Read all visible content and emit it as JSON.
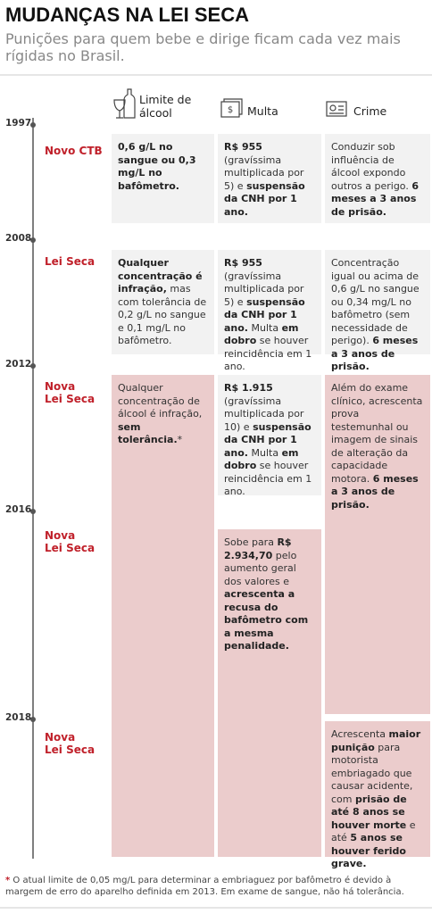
{
  "header": {
    "title": "MUDANÇAS NA LEI SECA",
    "subtitle": "Punições para quem bebe e dirige ficam cada vez mais rígidas no Brasil."
  },
  "columns": {
    "limit": "Limite de álcool",
    "fine": "Multa",
    "crime": "Crime"
  },
  "entries": [
    {
      "year": "1997",
      "label": "Novo CTB",
      "cells": {
        "limit": [
          {
            "text": "0,6 g/L no sangue ou 0,3 mg/L no bafômetro.",
            "bold": true
          }
        ],
        "fine": [
          {
            "text": "R$ 955",
            "bold": true
          },
          {
            "text": " (gravíssima multiplicada por 5) e ",
            "bold": false
          },
          {
            "text": "suspensão da CNH por 1 ano.",
            "bold": true
          }
        ],
        "crime": [
          {
            "text": "Conduzir sob influência de álcool expondo outros a perigo. ",
            "bold": false
          },
          {
            "text": "6 meses a 3 anos de prisão.",
            "bold": true
          }
        ]
      }
    },
    {
      "year": "2008",
      "label": "Lei Seca",
      "cells": {
        "limit": [
          {
            "text": "Qualquer concentração é infração,",
            "bold": true
          },
          {
            "text": " mas com tolerância de 0,2 g/L no sangue e 0,1 mg/L no bafômetro.",
            "bold": false
          }
        ],
        "fine": [
          {
            "text": "R$ 955",
            "bold": true
          },
          {
            "text": " (gravíssima multiplicada por 5) e ",
            "bold": false
          },
          {
            "text": "suspensão da CNH por 1 ano.",
            "bold": true
          },
          {
            "text": " Multa ",
            "bold": false
          },
          {
            "text": "em dobro",
            "bold": true
          },
          {
            "text": " se houver reincidência em 1 ano.",
            "bold": false
          }
        ],
        "crime": [
          {
            "text": "Concentração igual ou acima de 0,6 g/L no sangue ou 0,34 mg/L no bafômetro (sem necessidade de perigo). ",
            "bold": false
          },
          {
            "text": "6 meses a 3 anos de prisão.",
            "bold": true
          }
        ]
      }
    },
    {
      "year": "2012",
      "label": "Nova\nLei Seca",
      "cells": {
        "limit": [
          {
            "text": "Qualquer concentração de álcool é infração, ",
            "bold": false
          },
          {
            "text": "sem tolerância.",
            "bold": true
          },
          {
            "text": "*",
            "bold": false
          }
        ],
        "fine": [
          {
            "text": "R$ 1.915",
            "bold": true
          },
          {
            "text": " (gravíssima multiplicada por 10) e ",
            "bold": false
          },
          {
            "text": "suspensão da CNH por 1 ano.",
            "bold": true
          },
          {
            "text": " Multa ",
            "bold": false
          },
          {
            "text": "em dobro",
            "bold": true
          },
          {
            "text": " se houver reincidência em 1 ano.",
            "bold": false
          }
        ],
        "crime": [
          {
            "text": "Além do exame clínico, acrescenta prova testemunhal ou imagem de sinais de alteração da capacidade motora. ",
            "bold": false
          },
          {
            "text": "6 meses a 3 anos de prisão.",
            "bold": true
          }
        ]
      }
    },
    {
      "year": "2016",
      "label": "Nova\nLei Seca",
      "cells": {
        "fine": [
          {
            "text": "Sobe para ",
            "bold": false
          },
          {
            "text": "R$ 2.934,70",
            "bold": true
          },
          {
            "text": " pelo aumento geral dos valores e ",
            "bold": false
          },
          {
            "text": "acrescenta a recusa do bafômetro com a mesma penalidade.",
            "bold": true
          }
        ]
      }
    },
    {
      "year": "2018",
      "label": "Nova\nLei Seca",
      "cells": {
        "crime": [
          {
            "text": "Acrescenta ",
            "bold": false
          },
          {
            "text": "maior punição",
            "bold": true
          },
          {
            "text": " para motorista embriagado que causar acidente, com ",
            "bold": false
          },
          {
            "text": "prisão de até 8 anos se houver morte",
            "bold": true
          },
          {
            "text": " e até ",
            "bold": false
          },
          {
            "text": "5 anos se houver ferido grave.",
            "bold": true
          }
        ]
      }
    }
  ],
  "footnote": {
    "marker": "*",
    "text": " O atual limite de 0,05 mg/L para determinar a embriaguez por bafômetro é devido à margem de erro do aparelho definida em 2013. Em exame de sangue, não há tolerância."
  }
}
